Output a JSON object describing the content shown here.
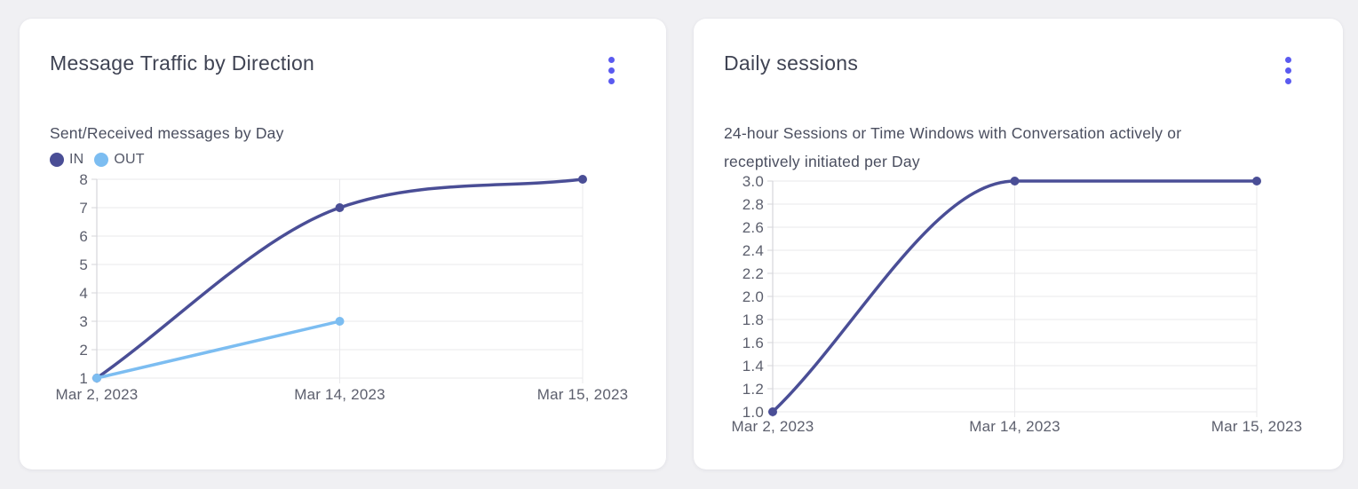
{
  "page": {
    "background": "#F0F0F3"
  },
  "colors": {
    "accent": "#5A5AF0",
    "grid": "#E8E8EB",
    "axis": "#D5D5DA",
    "tick_label": "#5C5F6D",
    "series_in": "#4A4E96",
    "series_out": "#7CBDF1"
  },
  "icons": {
    "more_options": "kebab-vertical-dots"
  },
  "chart_data": [
    {
      "id": "message_traffic_by_direction",
      "type": "line",
      "title": "Message Traffic by Direction",
      "subtitle": "Sent/Received messages by Day",
      "categories": [
        "Mar 2, 2023",
        "Mar 14, 2023",
        "Mar 15, 2023"
      ],
      "series": [
        {
          "name": "IN",
          "color": "#4A4E96",
          "values": [
            1,
            7,
            8
          ]
        },
        {
          "name": "OUT",
          "color": "#7CBDF1",
          "values": [
            1,
            3,
            null
          ]
        }
      ],
      "ylim": [
        1,
        8
      ],
      "ytick_step": 1,
      "y_decimals": 0,
      "grid": true,
      "legend_position": "top-left",
      "curve": "monotone"
    },
    {
      "id": "daily_sessions",
      "type": "line",
      "title": "Daily sessions",
      "subtitle": "24-hour Sessions or Time Windows with Conversation actively or receptively initiated per Day",
      "categories": [
        "Mar 2, 2023",
        "Mar 14, 2023",
        "Mar 15, 2023"
      ],
      "series": [
        {
          "name": "Sessions",
          "color": "#4A4E96",
          "values": [
            1.0,
            3.0,
            3.0
          ]
        }
      ],
      "ylim": [
        1.0,
        3.0
      ],
      "ytick_step": 0.2,
      "y_decimals": 1,
      "grid": true,
      "legend_position": "none",
      "curve": "monotone"
    }
  ]
}
